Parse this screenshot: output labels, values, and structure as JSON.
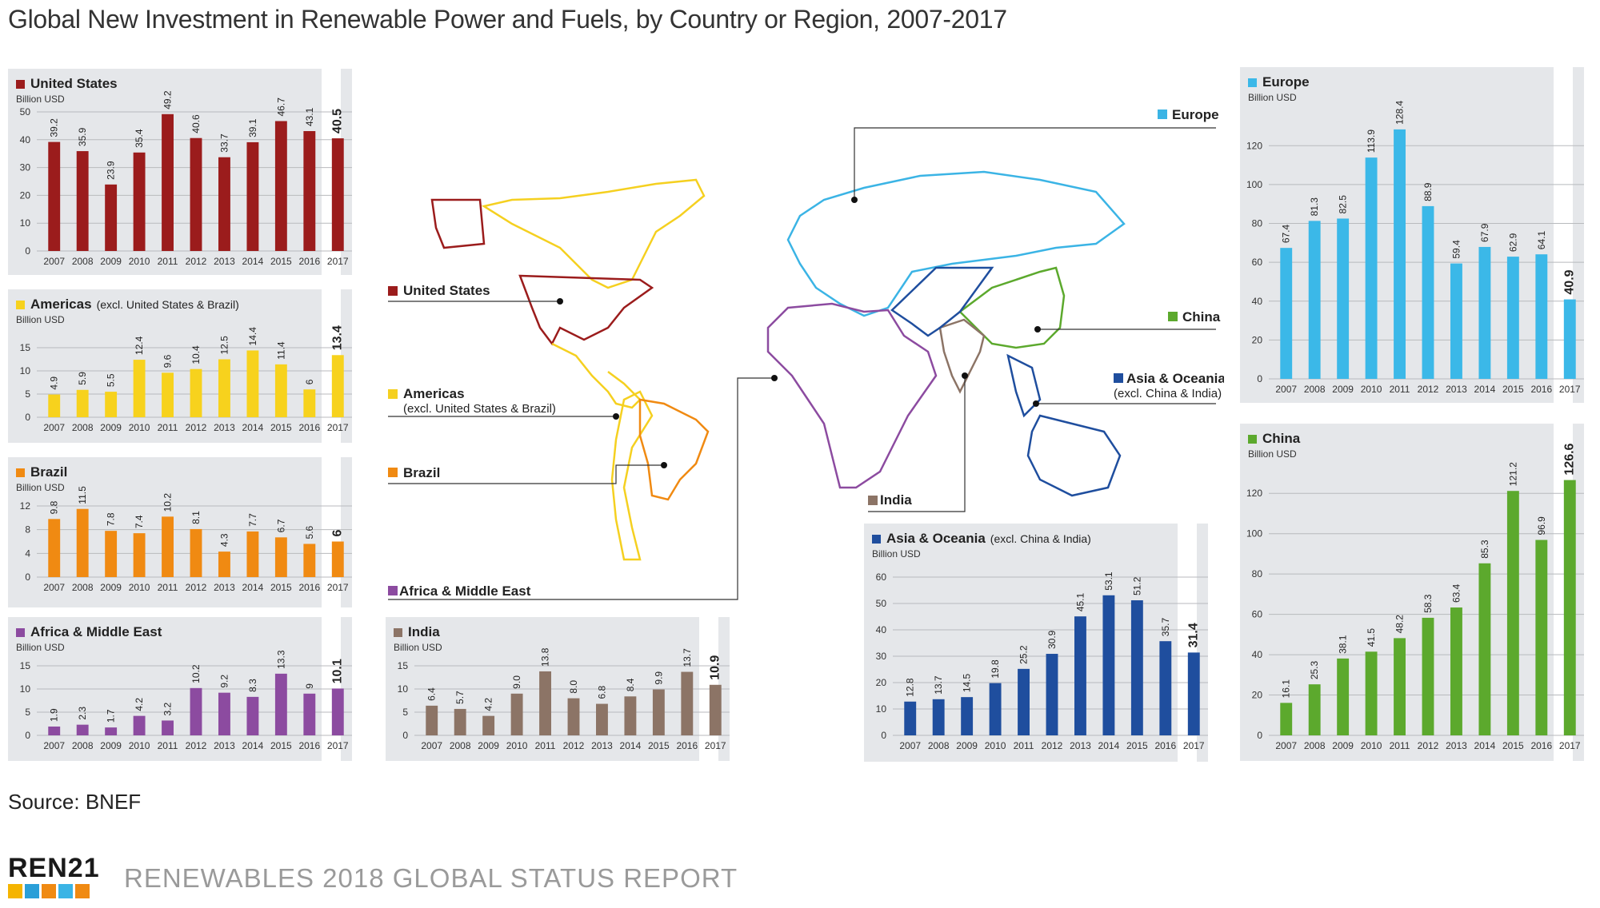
{
  "title": "Global New Investment in Renewable Power and Fuels, by Country or Region, 2007-2017",
  "source": "Source: BNEF",
  "logo_text": "REN21",
  "report_title": "RENEWABLES 2018 GLOBAL STATUS REPORT",
  "map_labels": [
    {
      "id": "united-states",
      "text": "United States",
      "color": "#9b1c1c"
    },
    {
      "id": "americas",
      "text": "Americas",
      "subtext": "(excl. United States & Brazil)",
      "color": "#f5d020"
    },
    {
      "id": "brazil",
      "text": "Brazil",
      "color": "#f08a12"
    },
    {
      "id": "africa",
      "text": "Africa & Middle East",
      "color": "#8c4ba0"
    },
    {
      "id": "europe",
      "text": "Europe",
      "color": "#3bb4e5"
    },
    {
      "id": "china",
      "text": "China",
      "color": "#5ca92d"
    },
    {
      "id": "asia",
      "text": "Asia & Oceania",
      "subtext": "(excl. China & India)",
      "color": "#1f4e9e"
    },
    {
      "id": "india",
      "text": "India",
      "color": "#8c7466"
    }
  ],
  "chart_data": [
    {
      "id": "us",
      "type": "bar",
      "title": "United States",
      "subtitle": "",
      "unit": "Billion USD",
      "color": "#9b1c1c",
      "categories": [
        "2007",
        "2008",
        "2009",
        "2010",
        "2011",
        "2012",
        "2013",
        "2014",
        "2015",
        "2016",
        "2017"
      ],
      "values": [
        39.2,
        35.9,
        23.9,
        35.4,
        49.2,
        40.6,
        33.7,
        39.1,
        46.7,
        43.1,
        40.5
      ],
      "value_labels": [
        "39.2",
        "35.9",
        "23.9",
        "35.4",
        "49.2",
        "40.6",
        "33.7",
        "39.1",
        "46.7",
        "43.1",
        "40.5"
      ],
      "yticks": [
        0,
        10,
        20,
        30,
        40,
        50
      ],
      "ylim": [
        0,
        50
      ]
    },
    {
      "id": "americas",
      "type": "bar",
      "title": "Americas",
      "subtitle": "(excl. United States & Brazil)",
      "unit": "Billion USD",
      "color": "#f7d21d",
      "categories": [
        "2007",
        "2008",
        "2009",
        "2010",
        "2011",
        "2012",
        "2013",
        "2014",
        "2015",
        "2016",
        "2017"
      ],
      "values": [
        4.9,
        5.9,
        5.5,
        12.4,
        9.6,
        10.4,
        12.5,
        14.4,
        11.4,
        6,
        13.4
      ],
      "value_labels": [
        "4.9",
        "5.9",
        "5.5",
        "12.4",
        "9.6",
        "10.4",
        "12.5",
        "14.4",
        "11.4",
        "6",
        "13.4"
      ],
      "yticks": [
        0,
        5,
        10,
        15
      ],
      "ylim": [
        0,
        15
      ]
    },
    {
      "id": "brazil",
      "type": "bar",
      "title": "Brazil",
      "subtitle": "",
      "unit": "Billion USD",
      "color": "#f08a12",
      "categories": [
        "2007",
        "2008",
        "2009",
        "2010",
        "2011",
        "2012",
        "2013",
        "2014",
        "2015",
        "2016",
        "2017"
      ],
      "values": [
        9.8,
        11.5,
        7.8,
        7.4,
        10.2,
        8.1,
        4.3,
        7.7,
        6.7,
        5.6,
        6
      ],
      "value_labels": [
        "9.8",
        "11.5",
        "7.8",
        "7.4",
        "10.2",
        "8.1",
        "4.3",
        "7.7",
        "6.7",
        "5.6",
        "6"
      ],
      "yticks": [
        0,
        4,
        8,
        12
      ],
      "ylim": [
        0,
        12
      ]
    },
    {
      "id": "africa",
      "type": "bar",
      "title": "Africa & Middle East",
      "subtitle": "",
      "unit": "Billion USD",
      "color": "#8c4ba0",
      "categories": [
        "2007",
        "2008",
        "2009",
        "2010",
        "2011",
        "2012",
        "2013",
        "2014",
        "2015",
        "2016",
        "2017"
      ],
      "values": [
        1.9,
        2.3,
        1.7,
        4.2,
        3.2,
        10.2,
        9.2,
        8.3,
        13.3,
        9,
        10.1
      ],
      "value_labels": [
        "1.9",
        "2.3",
        "1.7",
        "4.2",
        "3.2",
        "10.2",
        "9.2",
        "8.3",
        "13.3",
        "9",
        "10.1"
      ],
      "yticks": [
        0,
        5,
        10,
        15
      ],
      "ylim": [
        0,
        15
      ]
    },
    {
      "id": "india",
      "type": "bar",
      "title": "India",
      "subtitle": "",
      "unit": "Billion USD",
      "color": "#8c7466",
      "categories": [
        "2007",
        "2008",
        "2009",
        "2010",
        "2011",
        "2012",
        "2013",
        "2014",
        "2015",
        "2016",
        "2017"
      ],
      "values": [
        6.4,
        5.7,
        4.2,
        9.0,
        13.8,
        8.0,
        6.8,
        8.4,
        9.9,
        13.7,
        10.9
      ],
      "value_labels": [
        "6.4",
        "5.7",
        "4.2",
        "9.0",
        "13.8",
        "8.0",
        "6.8",
        "8.4",
        "9.9",
        "13.7",
        "10.9"
      ],
      "yticks": [
        0,
        5,
        10,
        15
      ],
      "ylim": [
        0,
        15
      ]
    },
    {
      "id": "asia",
      "type": "bar",
      "title": "Asia & Oceania",
      "subtitle": "(excl. China & India)",
      "unit": "Billion USD",
      "color": "#1f4e9e",
      "categories": [
        "2007",
        "2008",
        "2009",
        "2010",
        "2011",
        "2012",
        "2013",
        "2014",
        "2015",
        "2016",
        "2017"
      ],
      "values": [
        12.8,
        13.7,
        14.5,
        19.8,
        25.2,
        30.9,
        45.1,
        53.1,
        51.2,
        35.7,
        31.4
      ],
      "value_labels": [
        "12.8",
        "13.7",
        "14.5",
        "19.8",
        "25.2",
        "30.9",
        "45.1",
        "53.1",
        "51.2",
        "35.7",
        "31.4"
      ],
      "yticks": [
        0,
        10,
        20,
        30,
        40,
        50,
        60
      ],
      "ylim": [
        0,
        60
      ]
    },
    {
      "id": "europe",
      "type": "bar",
      "title": "Europe",
      "subtitle": "",
      "unit": "Billion USD",
      "color": "#3bb8e8",
      "categories": [
        "2007",
        "2008",
        "2009",
        "2010",
        "2011",
        "2012",
        "2013",
        "2014",
        "2015",
        "2016",
        "2017"
      ],
      "values": [
        67.4,
        81.3,
        82.5,
        113.9,
        128.4,
        88.9,
        59.4,
        67.9,
        62.9,
        64.1,
        40.9
      ],
      "value_labels": [
        "67.4",
        "81.3",
        "82.5",
        "113.9",
        "128.4",
        "88.9",
        "59.4",
        "67.9",
        "62.9",
        "64.1",
        "40.9"
      ],
      "yticks": [
        0,
        20,
        40,
        60,
        80,
        100,
        120
      ],
      "ylim": [
        0,
        130
      ]
    },
    {
      "id": "china",
      "type": "bar",
      "title": "China",
      "subtitle": "",
      "unit": "Billion USD",
      "color": "#5ca92d",
      "categories": [
        "2007",
        "2008",
        "2009",
        "2010",
        "2011",
        "2012",
        "2013",
        "2014",
        "2015",
        "2016",
        "2017"
      ],
      "values": [
        16.1,
        25.3,
        38.1,
        41.5,
        48.2,
        58.3,
        63.4,
        85.3,
        121.2,
        96.9,
        126.6
      ],
      "value_labels": [
        "16.1",
        "25.3",
        "38.1",
        "41.5",
        "48.2",
        "58.3",
        "63.4",
        "85.3",
        "121.2",
        "96.9",
        "126.6"
      ],
      "yticks": [
        0,
        20,
        40,
        60,
        80,
        100,
        120
      ],
      "ylim": [
        0,
        130
      ]
    }
  ]
}
